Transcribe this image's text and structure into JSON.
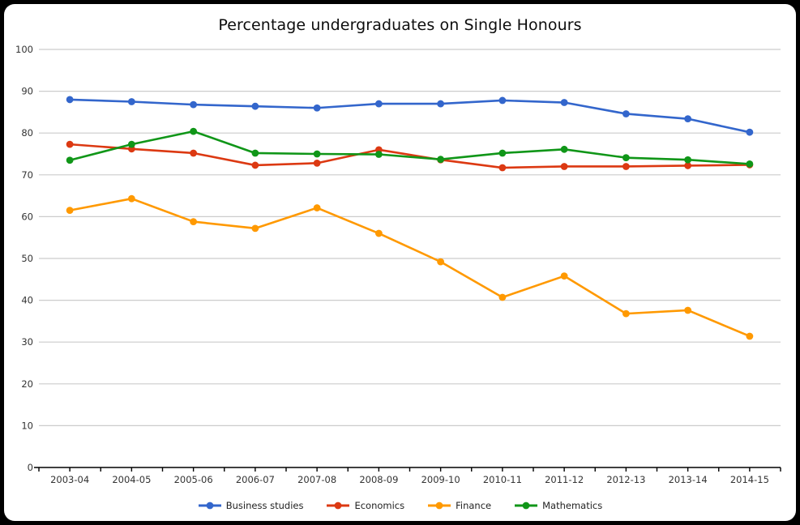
{
  "frame": {
    "background": "#000000",
    "chart_background": "#ffffff"
  },
  "chart_data": {
    "type": "line",
    "title": "Percentage undergraduates on Single Honours",
    "categories": [
      "2003-04",
      "2004-05",
      "2005-06",
      "2006-07",
      "2007-08",
      "2008-09",
      "2009-10",
      "2010-11",
      "2011-12",
      "2012-13",
      "2013-14",
      "2014-15"
    ],
    "series": [
      {
        "name": "Business studies",
        "color": "#3366CC",
        "values": [
          88.0,
          87.5,
          86.8,
          86.4,
          86.0,
          87.0,
          87.0,
          87.8,
          87.3,
          84.6,
          83.4,
          80.2
        ]
      },
      {
        "name": "Economics",
        "color": "#DC3912",
        "values": [
          77.3,
          76.2,
          75.2,
          72.3,
          72.8,
          76.0,
          73.6,
          71.7,
          72.0,
          72.0,
          72.2,
          72.4
        ]
      },
      {
        "name": "Finance",
        "color": "#FF9900",
        "values": [
          61.5,
          64.3,
          58.8,
          57.2,
          62.1,
          56.0,
          49.2,
          40.7,
          45.8,
          36.8,
          37.6,
          31.4
        ]
      },
      {
        "name": "Mathematics",
        "color": "#109618",
        "values": [
          73.5,
          77.3,
          80.4,
          75.2,
          75.0,
          74.9,
          73.7,
          75.2,
          76.1,
          74.1,
          73.6,
          72.6
        ]
      }
    ],
    "ylim": [
      0,
      100
    ],
    "ytick_step": 10,
    "yticks": [
      "0",
      "10",
      "20",
      "30",
      "40",
      "50",
      "60",
      "70",
      "80",
      "90",
      "100"
    ],
    "grid": true,
    "legend_position": "bottom",
    "gridline_color": "#CCCCCC",
    "axis_color": "#000000",
    "tick_label_color": "#333333"
  }
}
